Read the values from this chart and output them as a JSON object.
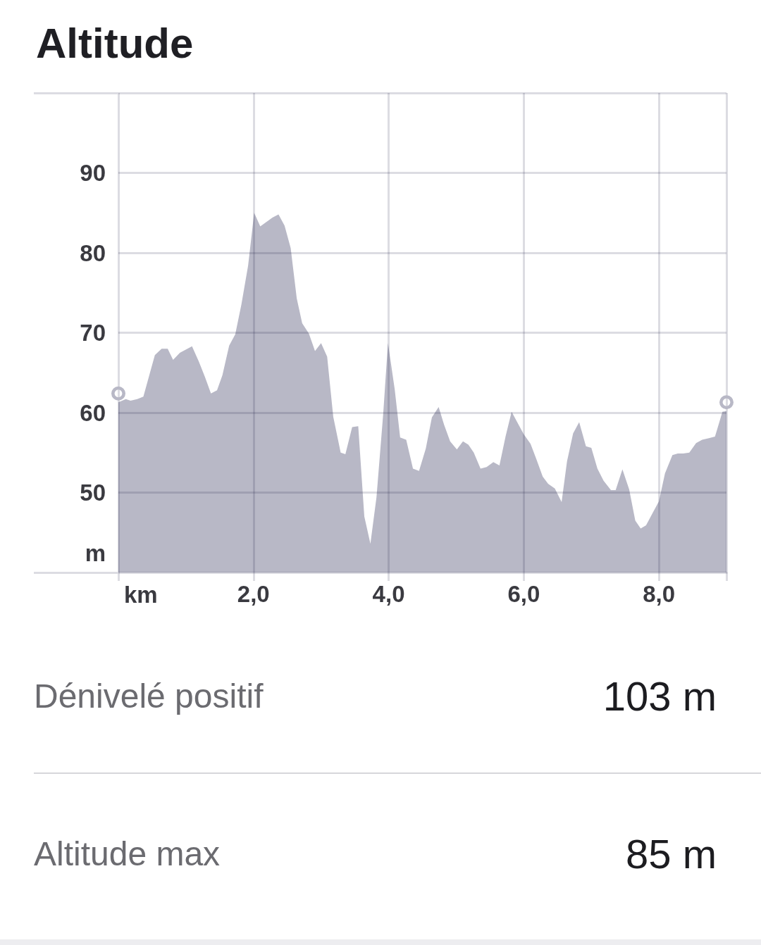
{
  "chart_data": {
    "type": "area",
    "title": "Altitude",
    "xlabel": "km",
    "ylabel": "m",
    "annotations": [
      "Dénivelé positif",
      "103 m",
      "Altitude max",
      "85 m"
    ],
    "xlim": [
      0,
      9
    ],
    "ylim": [
      40,
      100
    ],
    "xticks": [
      {
        "value": 0,
        "label": null
      },
      {
        "value": 2,
        "label": "2,0"
      },
      {
        "value": 4,
        "label": "4,0"
      },
      {
        "value": 6,
        "label": "6,0"
      },
      {
        "value": 8,
        "label": "8,0"
      },
      {
        "value": 9,
        "label": null
      }
    ],
    "yticks": [
      50,
      60,
      70,
      80,
      90,
      {
        "value": 100,
        "label": null
      }
    ],
    "grid": true,
    "series": [
      {
        "color": "#b8b8c6",
        "x": [
          0,
          0.11,
          0.18,
          0.28,
          0.37,
          0.54,
          0.64,
          0.73,
          0.81,
          0.91,
          1.09,
          1.19,
          1.28,
          1.37,
          1.46,
          1.54,
          1.64,
          1.73,
          1.82,
          1.92,
          2.01,
          2.1,
          2.28,
          2.37,
          2.46,
          2.55,
          2.64,
          2.72,
          2.82,
          2.91,
          3,
          3.09,
          3.18,
          3.29,
          3.36,
          3.46,
          3.55,
          3.64,
          3.73,
          3.82,
          3.92,
          3.99,
          4.09,
          4.17,
          4.26,
          4.36,
          4.45,
          4.55,
          4.64,
          4.74,
          4.82,
          4.91,
          5.01,
          5.1,
          5.18,
          5.26,
          5.36,
          5.45,
          5.55,
          5.64,
          5.73,
          5.82,
          6,
          6.1,
          6.19,
          6.28,
          6.36,
          6.46,
          6.56,
          6.64,
          6.73,
          6.82,
          6.92,
          7,
          7.09,
          7.18,
          7.29,
          7.36,
          7.46,
          7.56,
          7.65,
          7.73,
          7.81,
          7.91,
          8,
          8.09,
          8.2,
          8.28,
          8.36,
          8.45,
          8.55,
          8.64,
          8.74,
          8.83,
          8.94,
          9
        ],
        "values": [
          61.3,
          61.7,
          61.5,
          61.7,
          62.0,
          67.2,
          68.0,
          68.0,
          66.6,
          67.5,
          68.3,
          66.4,
          64.5,
          62.4,
          62.8,
          64.7,
          68.4,
          69.8,
          73.5,
          78.4,
          85.0,
          83.3,
          84.4,
          84.8,
          83.4,
          80.6,
          74.3,
          71.2,
          69.9,
          67.7,
          68.7,
          67.0,
          59.5,
          55.0,
          54.8,
          58.2,
          58.3,
          47.0,
          43.6,
          49.4,
          59.9,
          68.7,
          62.9,
          56.9,
          56.6,
          53.0,
          52.7,
          55.5,
          59.4,
          60.7,
          58.5,
          56.4,
          55.4,
          56.4,
          56.0,
          55.0,
          53.0,
          53.2,
          53.8,
          53.4,
          57.0,
          60.1,
          57.3,
          56.1,
          54.1,
          52.0,
          51.1,
          50.5,
          48.8,
          53.9,
          57.4,
          58.8,
          55.8,
          55.6,
          53.0,
          51.5,
          50.3,
          50.3,
          52.9,
          50.4,
          46.5,
          45.5,
          45.9,
          47.5,
          48.9,
          52.4,
          54.7,
          54.9,
          54.9,
          55.0,
          56.2,
          56.6,
          56.8,
          57.0,
          60.1,
          60.2
        ]
      },
      {
        "type": "scatter",
        "color": "#b8b8c6",
        "marker": "circle",
        "x": [
          0,
          9
        ],
        "values": [
          62.4,
          61.3
        ]
      }
    ]
  }
}
